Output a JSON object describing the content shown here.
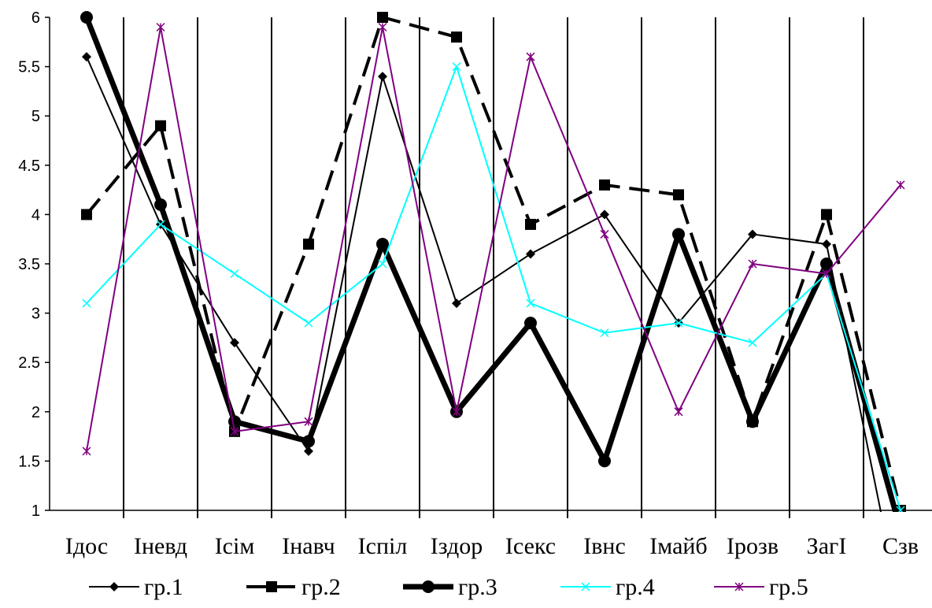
{
  "chart_data": {
    "type": "line",
    "categories": [
      "Ідос",
      "Іневд",
      "Ісім",
      "Інавч",
      "Іспіл",
      "Іздор",
      "Ісекс",
      "Івнс",
      "Імайб",
      "Ірозв",
      "ЗагІ",
      "Сзв"
    ],
    "ylim": [
      1,
      6
    ],
    "yticks": [
      "1",
      "1.5",
      "2",
      "2.5",
      "3",
      "3.5",
      "4",
      "4.5",
      "5",
      "5.5",
      "6"
    ],
    "grid": "vertical",
    "legend_position": "bottom",
    "series": [
      {
        "name": "гр.1",
        "values": [
          5.6,
          3.9,
          2.7,
          1.6,
          5.4,
          3.1,
          3.6,
          4.0,
          2.9,
          3.8,
          3.7,
          0.0
        ],
        "color": "#000000",
        "marker": "diamond",
        "dash": "solid",
        "width": "thin"
      },
      {
        "name": "гр.2",
        "values": [
          4.0,
          4.9,
          1.8,
          3.7,
          6.0,
          5.8,
          3.9,
          4.3,
          4.2,
          1.9,
          4.0,
          1.0
        ],
        "color": "#000000",
        "marker": "square",
        "dash": "dashed",
        "width": "medium"
      },
      {
        "name": "гр.3",
        "values": [
          6.0,
          4.1,
          1.9,
          1.7,
          3.7,
          2.0,
          2.9,
          1.5,
          3.8,
          1.9,
          3.5,
          0.8
        ],
        "color": "#000000",
        "marker": "circle",
        "dash": "solid",
        "width": "thick"
      },
      {
        "name": "гр.4",
        "values": [
          3.1,
          3.9,
          3.4,
          2.9,
          3.5,
          5.5,
          3.1,
          2.8,
          2.9,
          2.7,
          3.4,
          1.0
        ],
        "color": "#00FFFF",
        "marker": "x",
        "dash": "solid",
        "width": "thin"
      },
      {
        "name": "гр.5",
        "values": [
          1.6,
          5.9,
          1.8,
          1.9,
          5.9,
          2.0,
          5.6,
          3.8,
          2.0,
          3.5,
          3.4,
          4.3
        ],
        "color": "#800080",
        "marker": "star",
        "dash": "solid",
        "width": "thin"
      }
    ]
  }
}
